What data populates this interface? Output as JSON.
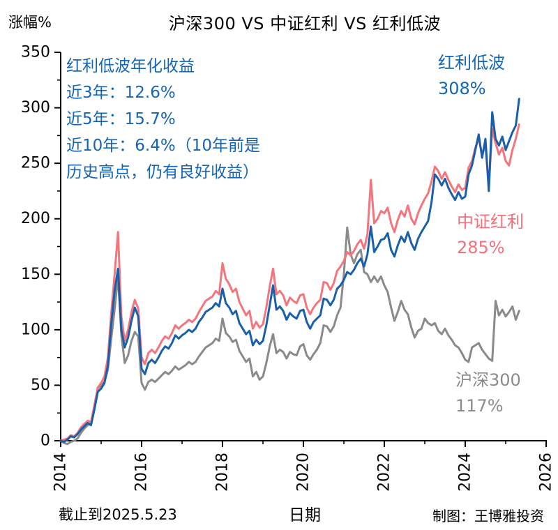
{
  "header": {
    "y_axis_unit": "涨幅%",
    "title": "沪深300 VS 中证红利 VS 红利低波"
  },
  "annotation": {
    "color": "#1565B5",
    "lines": [
      "红利低波年化收益",
      "近3年：12.6%",
      "近5年：15.7%",
      "近10年：6.4%（10年前是",
      "历史高点，仍有良好收益）"
    ]
  },
  "series_labels": {
    "dibo": {
      "name": "红利低波",
      "pct": "308%",
      "color": "#1565B5"
    },
    "hongli": {
      "name": "中证红利",
      "pct": "285%",
      "color": "#F4707A"
    },
    "hs300": {
      "name": "沪深300",
      "pct": "117%",
      "color": "#8C8C8C"
    }
  },
  "footer": {
    "left": "截止到2025.5.23",
    "center": "日期",
    "right": "制图：王博雅投资"
  },
  "chart_data": {
    "type": "line",
    "title": "沪深300 VS 中证红利 VS 红利低波",
    "xlabel": "日期",
    "ylabel": "涨幅%",
    "xlim": [
      2014,
      2026
    ],
    "ylim": [
      0,
      350
    ],
    "x_ticks": [
      2014,
      2016,
      2018,
      2020,
      2022,
      2024,
      2026
    ],
    "x_minor_ticks": [
      2015,
      2017,
      2019,
      2021,
      2023,
      2025
    ],
    "y_ticks": [
      0,
      50,
      100,
      150,
      200,
      250,
      300,
      350
    ],
    "y_minor_step": 25,
    "grid": false,
    "legend_position": "inline-labels",
    "x_start_year": 2014,
    "interval_months": 1,
    "series": [
      {
        "key": "hs300",
        "name": "沪深300",
        "final_pct": 117,
        "color": "#8A8A8A",
        "values": [
          0,
          -2,
          -3,
          -1,
          0,
          2,
          7,
          11,
          14,
          16,
          30,
          47,
          50,
          53,
          64,
          92,
          118,
          148,
          95,
          70,
          77,
          90,
          98,
          94,
          52,
          46,
          53,
          55,
          53,
          56,
          59,
          62,
          60,
          63,
          67,
          64,
          66,
          68,
          71,
          69,
          71,
          76,
          80,
          84,
          86,
          88,
          92,
          90,
          110,
          97,
          94,
          89,
          91,
          81,
          76,
          71,
          74,
          58,
          62,
          55,
          58,
          70,
          85,
          96,
          79,
          82,
          80,
          74,
          80,
          78,
          77,
          85,
          87,
          77,
          73,
          78,
          82,
          88,
          104,
          103,
          98,
          103,
          113,
          120,
          150,
          192,
          168,
          160,
          168,
          172,
          152,
          150,
          143,
          148,
          143,
          148,
          140,
          134,
          120,
          108,
          116,
          126,
          118,
          114,
          102,
          93,
          99,
          101,
          110,
          106,
          104,
          106,
          99,
          96,
          101,
          95,
          91,
          86,
          84,
          79,
          73,
          71,
          84,
          86,
          88,
          82,
          78,
          74,
          72,
          126,
          113,
          118,
          112,
          116,
          121,
          109,
          117
        ]
      },
      {
        "key": "hongli",
        "name": "中证红利",
        "final_pct": 285,
        "color": "#F4757C",
        "values": [
          0,
          1,
          2,
          5,
          4,
          7,
          12,
          15,
          18,
          17,
          32,
          48,
          52,
          58,
          75,
          115,
          150,
          188,
          112,
          90,
          100,
          116,
          127,
          119,
          75,
          69,
          79,
          82,
          79,
          84,
          90,
          94,
          92,
          97,
          104,
          101,
          104,
          106,
          109,
          107,
          110,
          116,
          121,
          126,
          128,
          130,
          135,
          132,
          160,
          146,
          141,
          134,
          137,
          125,
          119,
          113,
          117,
          101,
          107,
          102,
          105,
          120,
          139,
          155,
          132,
          135,
          131,
          122,
          129,
          126,
          124,
          131,
          132,
          120,
          114,
          120,
          124,
          127,
          143,
          142,
          136,
          142,
          153,
          157,
          162,
          170,
          167,
          171,
          177,
          181,
          173,
          186,
          235,
          196,
          200,
          207,
          205,
          210,
          196,
          188,
          199,
          207,
          202,
          212,
          200,
          195,
          205,
          212,
          218,
          223,
          234,
          247,
          243,
          236,
          242,
          235,
          229,
          224,
          231,
          226,
          228,
          246,
          252,
          264,
          272,
          258,
          266,
          228,
          281,
          268,
          258,
          264,
          252,
          248,
          262,
          272,
          285
        ]
      },
      {
        "key": "dibo",
        "name": "红利低波",
        "final_pct": 308,
        "color": "#1A5FA8",
        "values": [
          0,
          -1,
          1,
          4,
          3,
          6,
          10,
          13,
          16,
          14,
          28,
          44,
          47,
          52,
          68,
          105,
          135,
          155,
          100,
          84,
          93,
          108,
          120,
          112,
          65,
          60,
          70,
          73,
          70,
          75,
          81,
          85,
          83,
          88,
          95,
          92,
          95,
          97,
          100,
          98,
          101,
          107,
          111,
          116,
          118,
          120,
          124,
          121,
          137,
          124,
          120,
          114,
          117,
          106,
          101,
          96,
          99,
          86,
          91,
          87,
          90,
          104,
          122,
          140,
          118,
          121,
          117,
          109,
          115,
          112,
          110,
          117,
          118,
          107,
          101,
          107,
          110,
          113,
          128,
          127,
          122,
          127,
          137,
          140,
          145,
          152,
          150,
          154,
          160,
          164,
          157,
          168,
          193,
          170,
          175,
          181,
          182,
          187,
          172,
          166,
          176,
          184,
          179,
          188,
          178,
          172,
          182,
          188,
          193,
          198,
          215,
          240,
          236,
          230,
          236,
          228,
          222,
          217,
          224,
          218,
          220,
          240,
          248,
          262,
          276,
          255,
          272,
          225,
          296,
          272,
          266,
          274,
          262,
          270,
          278,
          284,
          308
        ]
      }
    ]
  }
}
